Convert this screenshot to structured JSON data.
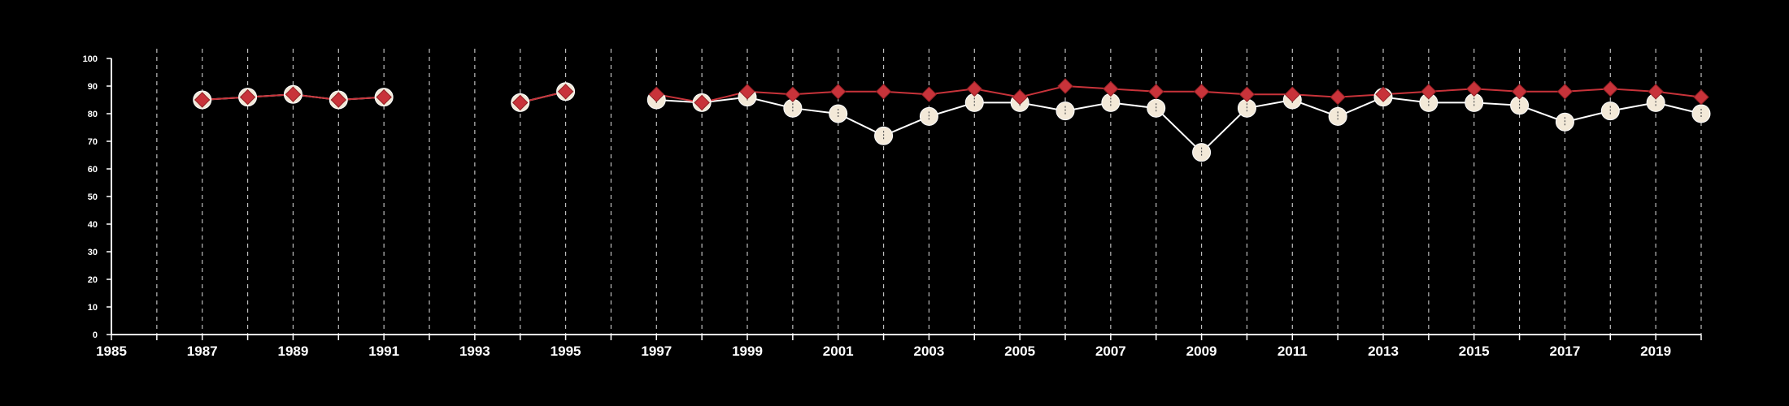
{
  "chart_data": {
    "type": "line",
    "title": "",
    "xlabel": "",
    "ylabel": "",
    "xlim": [
      1985,
      2020
    ],
    "ylim": [
      0,
      100
    ],
    "x_ticks": [
      1985,
      1987,
      1989,
      1991,
      1993,
      1995,
      1997,
      1999,
      2001,
      2003,
      2005,
      2007,
      2009,
      2011,
      2013,
      2015,
      2017,
      2019
    ],
    "y_ticks": [
      0,
      10,
      20,
      30,
      40,
      50,
      60,
      70,
      80,
      90,
      100
    ],
    "vertical_grid": "dashed, every year",
    "horizontal_grid": false,
    "legend": "none",
    "series": [
      {
        "color": "#f3e9d8",
        "marker": "circle",
        "points": [
          [
            1987,
            85
          ],
          [
            1988,
            86
          ],
          [
            1989,
            87
          ],
          [
            1990,
            85
          ],
          [
            1991,
            86
          ],
          [
            1994,
            84
          ],
          [
            1995,
            88
          ],
          [
            1997,
            85
          ],
          [
            1998,
            84
          ],
          [
            1999,
            86
          ],
          [
            2000,
            82
          ],
          [
            2001,
            80
          ],
          [
            2002,
            72
          ],
          [
            2003,
            79
          ],
          [
            2004,
            84
          ],
          [
            2005,
            84
          ],
          [
            2006,
            81
          ],
          [
            2007,
            84
          ],
          [
            2008,
            82
          ],
          [
            2009,
            66
          ],
          [
            2010,
            82
          ],
          [
            2011,
            85
          ],
          [
            2012,
            79
          ],
          [
            2013,
            86
          ],
          [
            2014,
            84
          ],
          [
            2015,
            84
          ],
          [
            2016,
            83
          ],
          [
            2017,
            77
          ],
          [
            2018,
            81
          ],
          [
            2019,
            84
          ],
          [
            2020,
            80
          ]
        ]
      },
      {
        "color": "#c8333a",
        "marker": "diamond",
        "points": [
          [
            1987,
            85
          ],
          [
            1988,
            86
          ],
          [
            1989,
            87
          ],
          [
            1990,
            85
          ],
          [
            1991,
            86
          ],
          [
            1994,
            84
          ],
          [
            1995,
            88
          ],
          [
            1997,
            87
          ],
          [
            1998,
            84
          ],
          [
            1999,
            88
          ],
          [
            2000,
            87
          ],
          [
            2001,
            88
          ],
          [
            2002,
            88
          ],
          [
            2003,
            87
          ],
          [
            2004,
            89
          ],
          [
            2005,
            86
          ],
          [
            2006,
            90
          ],
          [
            2007,
            89
          ],
          [
            2008,
            88
          ],
          [
            2009,
            88
          ],
          [
            2010,
            87
          ],
          [
            2011,
            87
          ],
          [
            2012,
            86
          ],
          [
            2013,
            87
          ],
          [
            2014,
            88
          ],
          [
            2015,
            89
          ],
          [
            2016,
            88
          ],
          [
            2017,
            88
          ],
          [
            2018,
            89
          ],
          [
            2019,
            88
          ],
          [
            2020,
            86
          ]
        ]
      }
    ]
  }
}
